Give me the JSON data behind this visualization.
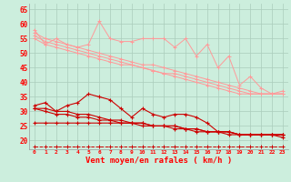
{
  "xlabel": "Vent moyen/en rafales ( km/h )",
  "background_color": "#cceedd",
  "grid_color": "#aaccbb",
  "x": [
    0,
    1,
    2,
    3,
    4,
    5,
    6,
    7,
    8,
    9,
    10,
    11,
    12,
    13,
    14,
    15,
    16,
    17,
    18,
    19,
    20,
    21,
    22,
    23
  ],
  "pink": "#ff9999",
  "red": "#cc0000",
  "ylim": [
    17,
    67
  ],
  "yticks": [
    20,
    25,
    30,
    35,
    40,
    45,
    50,
    55,
    60,
    65
  ],
  "series_pink_zigzag": [
    58,
    53,
    55,
    53,
    52,
    53,
    61,
    55,
    54,
    54,
    55,
    55,
    55,
    52,
    55,
    49,
    53,
    45,
    49,
    39,
    42,
    38,
    36,
    37
  ],
  "series_pink_line1": [
    57,
    55,
    54,
    53,
    52,
    51,
    50,
    49,
    48,
    47,
    46,
    46,
    45,
    44,
    43,
    42,
    41,
    40,
    39,
    38,
    37,
    36,
    36,
    36
  ],
  "series_pink_line2": [
    56,
    54,
    53,
    52,
    51,
    50,
    49,
    48,
    47,
    46,
    45,
    44,
    43,
    43,
    42,
    41,
    40,
    39,
    38,
    37,
    36,
    36,
    36,
    36
  ],
  "series_pink_line3": [
    55,
    53,
    52,
    51,
    50,
    49,
    48,
    47,
    46,
    46,
    45,
    44,
    43,
    42,
    41,
    40,
    39,
    38,
    37,
    36,
    36,
    36,
    36,
    36
  ],
  "series_red_zigzag": [
    32,
    33,
    30,
    32,
    33,
    36,
    35,
    34,
    31,
    28,
    31,
    29,
    28,
    29,
    29,
    28,
    26,
    23,
    23,
    22,
    22,
    22,
    22,
    22
  ],
  "series_red_line1": [
    31,
    31,
    30,
    30,
    29,
    29,
    28,
    27,
    27,
    26,
    26,
    25,
    25,
    25,
    24,
    24,
    23,
    23,
    23,
    22,
    22,
    22,
    22,
    22
  ],
  "series_red_line2": [
    31,
    30,
    29,
    29,
    28,
    28,
    27,
    27,
    26,
    26,
    25,
    25,
    25,
    24,
    24,
    23,
    23,
    23,
    22,
    22,
    22,
    22,
    22,
    22
  ],
  "series_red_line3": [
    26,
    26,
    26,
    26,
    26,
    26,
    26,
    26,
    26,
    26,
    26,
    25,
    25,
    25,
    24,
    24,
    23,
    23,
    23,
    22,
    22,
    22,
    22,
    21
  ],
  "series_dashed": [
    18,
    18,
    18,
    18,
    18,
    18,
    18,
    18,
    18,
    18,
    18,
    18,
    18,
    18,
    18,
    18,
    18,
    18,
    18,
    18,
    18,
    18,
    18,
    18
  ]
}
